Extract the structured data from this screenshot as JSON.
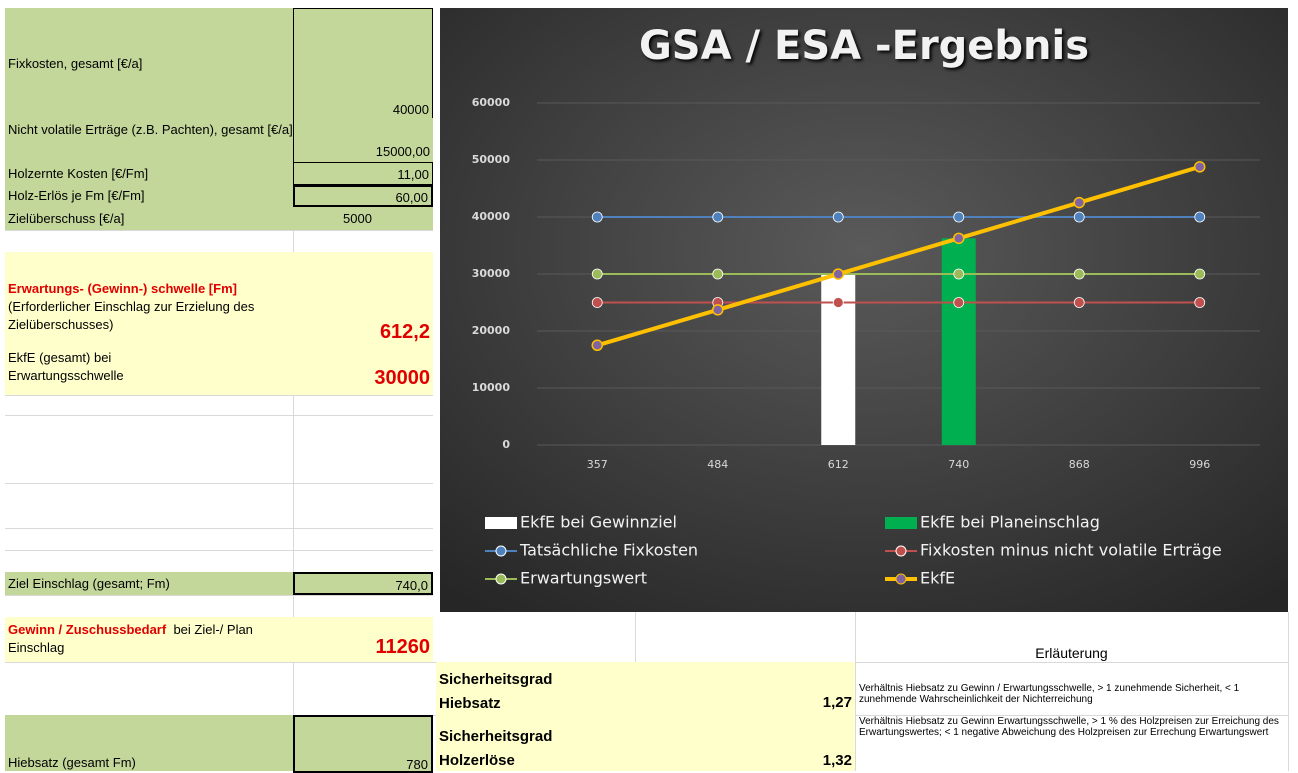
{
  "sheet": {
    "fixkosten": {
      "label": "Fixkosten, gesamt [€/a]",
      "value": "40000"
    },
    "ertraege": {
      "label": "Nicht volatile Erträge (z.B. Pachten), gesamt [€/a]",
      "value": "15000,00"
    },
    "holzernte": {
      "label": "Holzernte Kosten [€/Fm]",
      "value": "11,00"
    },
    "erloes": {
      "label": "Holz-Erlös je Fm [€/Fm]",
      "value": "60,00"
    },
    "ziel": {
      "label": "Zielüberschuss [€/a]",
      "value": "5000"
    },
    "schwelle": {
      "label_red": "Erwartungs- (Gewinn-) schwelle [Fm]",
      "label": "(Erforderlicher Einschlag zur Erzielung des Zielüberschusses)",
      "value": "612,2"
    },
    "ekfe": {
      "label": "EkfE (gesamt) bei Erwartungsschwelle",
      "value": "30000"
    },
    "einschlag": {
      "label": "Ziel Einschlag (gesamt; Fm)",
      "value": "740,0"
    },
    "gewinn": {
      "label_red": "Gewinn / Zuschussbedarf",
      "label": "bei Ziel-/ Plan Einschlag",
      "value": "11260"
    },
    "hiebsatz": {
      "label": "Hiebsatz (gesamt Fm)",
      "value": "780"
    },
    "erlaeuterung": "Erläuterung",
    "sicherheit": [
      {
        "label": "Sicherheitsgrad Hiebsatz",
        "value": "1,27",
        "note": "Verhältnis Hiebsatz zu Gewinn / Erwartungsschwelle, > 1 zunehmende Sicherheit, < 1 zunehmende Wahrscheinlichkeit der Nichterreichung"
      },
      {
        "label": "Sicherheitsgrad Holzerlöse",
        "value": "1,32",
        "note": "Verhältnis Hiebsatz zu Gewinn Erwartungsschwelle, > 1 %  des Holzpreisen zur Erreichung des Erwartungswertes; < 1 negative Abweichung des Holzpreisen zur Errechung Erwartungswert"
      }
    ]
  },
  "chart_data": {
    "type": "combo",
    "title": "GSA / ESA -Ergebnis",
    "categories": [
      "357",
      "484",
      "612",
      "740",
      "868",
      "996"
    ],
    "ylim": [
      0,
      60000
    ],
    "yticks": [
      0,
      10000,
      20000,
      30000,
      40000,
      50000,
      60000
    ],
    "grid": true,
    "series": [
      {
        "name": "EkfE bei Gewinnziel",
        "type": "bar",
        "color": "#ffffff",
        "values": [
          null,
          null,
          30000,
          null,
          null,
          null
        ]
      },
      {
        "name": "EkfE bei Planeinschlag",
        "type": "bar",
        "color": "#00b050",
        "values": [
          null,
          null,
          null,
          36260,
          null,
          null
        ]
      },
      {
        "name": "Tatsächliche Fixkosten",
        "type": "line",
        "color": "#4f81bd",
        "values": [
          40000,
          40000,
          40000,
          40000,
          40000,
          40000
        ]
      },
      {
        "name": "Fixkosten minus nicht volatile Erträge",
        "type": "line",
        "color": "#c0504d",
        "values": [
          25000,
          25000,
          25000,
          25000,
          25000,
          25000
        ]
      },
      {
        "name": "Erwartungswert",
        "type": "line",
        "color": "#9bbb59",
        "values": [
          30000,
          30000,
          30000,
          30000,
          30000,
          30000
        ]
      },
      {
        "name": "EkfE",
        "type": "line",
        "color": "#ffc000",
        "marker_color": "#8064a2",
        "values": [
          17493,
          23716,
          29988,
          36260,
          42532,
          48804
        ]
      }
    ]
  }
}
